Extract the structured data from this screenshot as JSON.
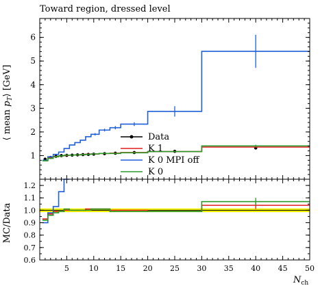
{
  "title": "Toward region, dressed level",
  "colors": {
    "data": "#000000",
    "k1": "#e41a1c",
    "k0_mpi_off": "#1f5fd9",
    "k0": "#2a9a2a",
    "band": "#f2f200"
  },
  "chart_data": [
    {
      "type": "line",
      "ylabel": "⟨ mean p_T ⟩ [GeV]",
      "ylim": [
        0,
        6.8
      ],
      "xlim": [
        0,
        50
      ],
      "y_ticks": [
        "1",
        "2",
        "3",
        "4",
        "5",
        "6"
      ],
      "legend_position": "center",
      "series": [
        {
          "name": "Data",
          "style": "points",
          "x": [
            1,
            2,
            3,
            4,
            5,
            6,
            7,
            8,
            9,
            10,
            12,
            14,
            17.5,
            25,
            40
          ],
          "y": [
            0.85,
            0.92,
            0.97,
            1.0,
            1.01,
            1.02,
            1.03,
            1.04,
            1.05,
            1.06,
            1.08,
            1.1,
            1.13,
            1.18,
            1.32
          ]
        },
        {
          "name": "K 1",
          "style": "step",
          "edges": [
            0.5,
            1.5,
            2.5,
            3.5,
            4.5,
            5.5,
            6.5,
            7.5,
            8.5,
            9.5,
            11,
            13,
            15,
            20,
            30,
            50
          ],
          "values": [
            0.8,
            0.9,
            0.96,
            0.99,
            1.01,
            1.02,
            1.03,
            1.04,
            1.06,
            1.07,
            1.09,
            1.1,
            1.13,
            1.17,
            1.36
          ]
        },
        {
          "name": "K 0 MPI off",
          "style": "step",
          "edges": [
            0.5,
            1.5,
            2.5,
            3.5,
            4.5,
            5.5,
            6.5,
            7.5,
            8.5,
            9.5,
            11,
            13,
            15,
            20,
            30,
            50
          ],
          "values": [
            0.8,
            0.95,
            1.05,
            1.15,
            1.3,
            1.45,
            1.55,
            1.65,
            1.8,
            1.9,
            2.08,
            2.18,
            2.33,
            2.87,
            5.41
          ],
          "errors": [
            0,
            0,
            0,
            0,
            0,
            0,
            0,
            0,
            0,
            0.05,
            0.06,
            0.07,
            0.08,
            0.22,
            0.7
          ]
        },
        {
          "name": "K 0",
          "style": "step",
          "edges": [
            0.5,
            1.5,
            2.5,
            3.5,
            4.5,
            5.5,
            6.5,
            7.5,
            8.5,
            9.5,
            11,
            13,
            15,
            20,
            30,
            50
          ],
          "values": [
            0.78,
            0.88,
            0.95,
            0.99,
            1.02,
            1.02,
            1.03,
            1.04,
            1.05,
            1.07,
            1.09,
            1.09,
            1.12,
            1.17,
            1.41
          ],
          "errors": [
            0,
            0,
            0,
            0,
            0,
            0,
            0,
            0,
            0,
            0,
            0,
            0,
            0,
            0,
            0.05
          ]
        }
      ]
    },
    {
      "type": "line",
      "ylabel": "MC/Data",
      "xlabel": "N_ch",
      "ylim": [
        0.6,
        1.25
      ],
      "xlim": [
        0,
        50
      ],
      "x_ticks": [
        "5",
        "10",
        "15",
        "20",
        "25",
        "30",
        "35",
        "40",
        "45",
        "50"
      ],
      "y_ticks": [
        "0.6",
        "0.7",
        "0.8",
        "0.9",
        "1.0",
        "1.1",
        "1.2"
      ],
      "band": [
        0.985,
        1.015
      ],
      "series": [
        {
          "name": "K 1",
          "style": "step",
          "edges": [
            0.5,
            1.5,
            2.5,
            3.5,
            4.5,
            5.5,
            6.5,
            7.5,
            8.5,
            9.5,
            11,
            13,
            15,
            20,
            30,
            50
          ],
          "values": [
            0.93,
            0.97,
            0.99,
            0.99,
            1.0,
            1.0,
            1.0,
            1.0,
            1.01,
            1.01,
            1.01,
            1.0,
            1.0,
            0.99,
            1.04
          ],
          "errors": [
            0,
            0,
            0,
            0,
            0,
            0,
            0,
            0,
            0,
            0,
            0,
            0,
            0,
            0,
            0.03
          ]
        },
        {
          "name": "K 0 MPI off",
          "style": "step",
          "edges": [
            0.5,
            1.5,
            2.5,
            3.5,
            4.5,
            5.5
          ],
          "values": [
            0.9,
            0.98,
            1.03,
            1.15,
            1.28
          ]
        },
        {
          "name": "K 0",
          "style": "step",
          "edges": [
            0.5,
            1.5,
            2.5,
            3.5,
            4.5,
            5.5,
            6.5,
            7.5,
            8.5,
            9.5,
            11,
            13,
            15,
            20,
            30,
            50
          ],
          "values": [
            0.92,
            0.96,
            0.98,
            0.99,
            1.01,
            1.0,
            1.0,
            1.0,
            1.0,
            1.01,
            1.01,
            0.99,
            0.99,
            0.99,
            1.07
          ],
          "errors": [
            0,
            0,
            0,
            0,
            0,
            0,
            0,
            0,
            0,
            0,
            0,
            0,
            0,
            0,
            0.03
          ]
        }
      ]
    }
  ]
}
